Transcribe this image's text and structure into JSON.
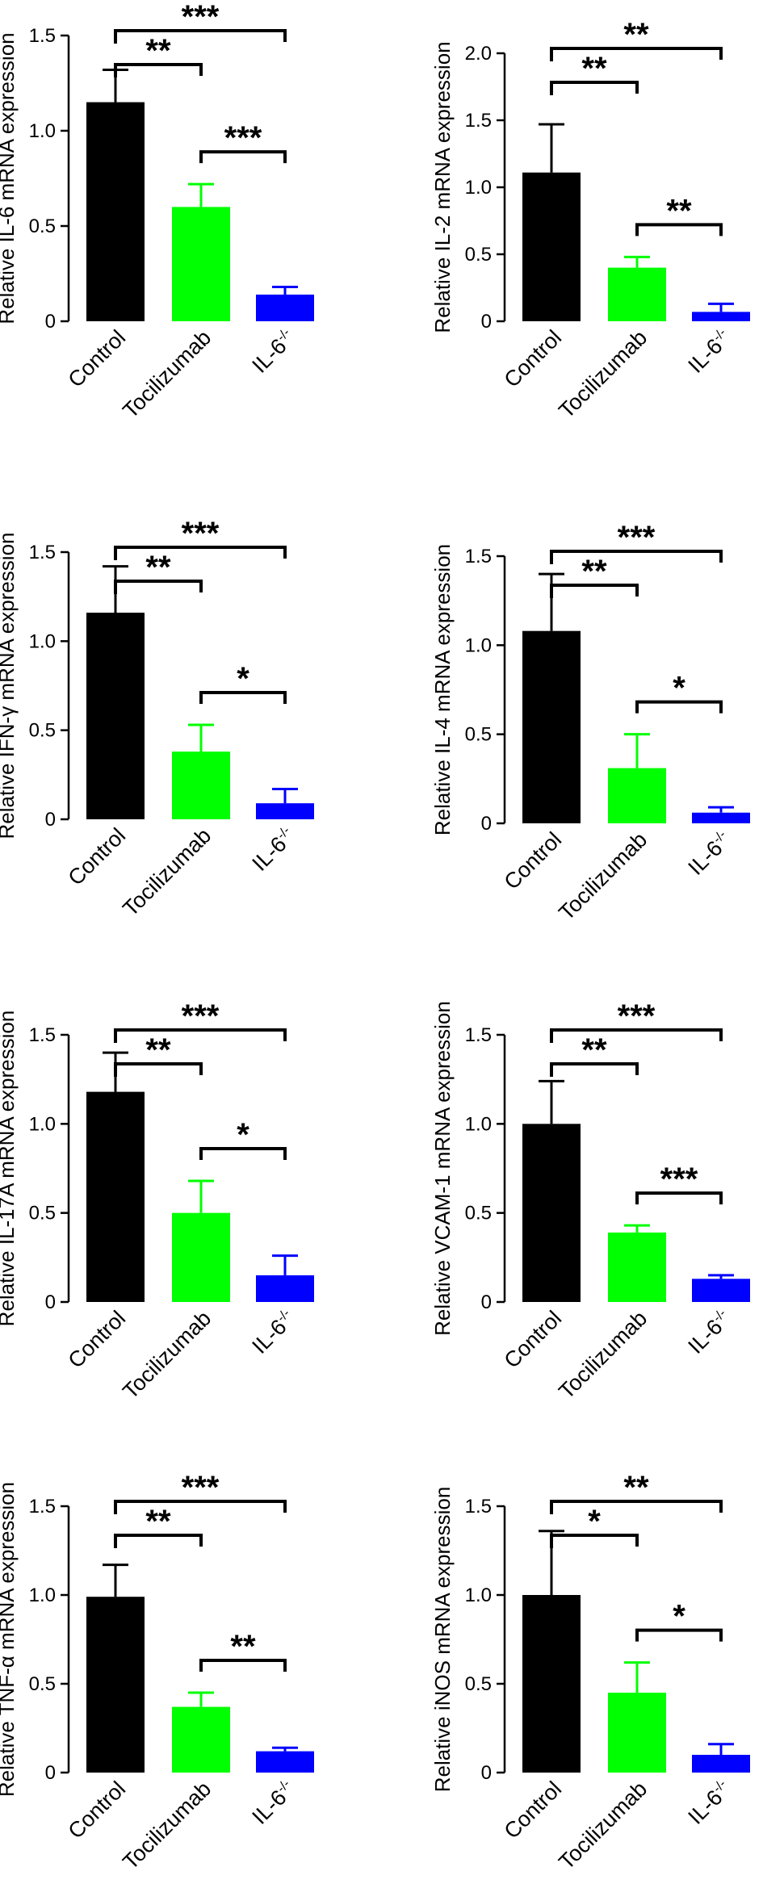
{
  "chart_data": [
    {
      "type": "bar",
      "title": "",
      "ylabel": "Relative IL-6 mRNA expression",
      "xlabel": "",
      "categories": [
        "Control",
        "Tocilizumab",
        "IL-6"
      ],
      "category_superscripts": [
        "",
        "",
        "-/-"
      ],
      "values": [
        1.15,
        0.6,
        0.14
      ],
      "errors": [
        0.17,
        0.12,
        0.04
      ],
      "colors": [
        "#000000",
        "#00ff00",
        "#0000ff"
      ],
      "ylim": [
        0,
        1.5
      ],
      "yticks": [
        "0",
        "0.5",
        "1.0",
        "1.5"
      ],
      "significance": [
        {
          "from": 0,
          "to": 2,
          "label": "***"
        },
        {
          "from": 0,
          "to": 1,
          "label": "**"
        },
        {
          "from": 1,
          "to": 2,
          "label": "***"
        }
      ]
    },
    {
      "type": "bar",
      "title": "",
      "ylabel": "Relative IL-2 mRNA expression",
      "xlabel": "",
      "categories": [
        "Control",
        "Tocilizumab",
        "IL-6"
      ],
      "category_superscripts": [
        "",
        "",
        "-/-"
      ],
      "values": [
        1.11,
        0.4,
        0.07
      ],
      "errors": [
        0.36,
        0.08,
        0.06
      ],
      "colors": [
        "#000000",
        "#00ff00",
        "#0000ff"
      ],
      "ylim": [
        0,
        2.0
      ],
      "yticks": [
        "0",
        "0.5",
        "1.0",
        "1.5",
        "2.0"
      ],
      "significance": [
        {
          "from": 0,
          "to": 2,
          "label": "**"
        },
        {
          "from": 0,
          "to": 1,
          "label": "**"
        },
        {
          "from": 1,
          "to": 2,
          "label": "**"
        }
      ]
    },
    {
      "type": "bar",
      "title": "",
      "ylabel": "Relative IFN-γ mRNA expression",
      "xlabel": "",
      "categories": [
        "Control",
        "Tocilizumab",
        "IL-6"
      ],
      "category_superscripts": [
        "",
        "",
        "-/-"
      ],
      "values": [
        1.16,
        0.38,
        0.09
      ],
      "errors": [
        0.26,
        0.15,
        0.08
      ],
      "colors": [
        "#000000",
        "#00ff00",
        "#0000ff"
      ],
      "ylim": [
        0,
        1.5
      ],
      "yticks": [
        "0",
        "0.5",
        "1.0",
        "1.5"
      ],
      "significance": [
        {
          "from": 0,
          "to": 2,
          "label": "***"
        },
        {
          "from": 0,
          "to": 1,
          "label": "**"
        },
        {
          "from": 1,
          "to": 2,
          "label": "*"
        }
      ]
    },
    {
      "type": "bar",
      "title": "",
      "ylabel": "Relative IL-4 mRNA expression",
      "xlabel": "",
      "categories": [
        "Control",
        "Tocilizumab",
        "IL-6"
      ],
      "category_superscripts": [
        "",
        "",
        "-/-"
      ],
      "values": [
        1.08,
        0.31,
        0.06
      ],
      "errors": [
        0.32,
        0.19,
        0.03
      ],
      "colors": [
        "#000000",
        "#00ff00",
        "#0000ff"
      ],
      "ylim": [
        0,
        1.5
      ],
      "yticks": [
        "0",
        "0.5",
        "1.0",
        "1.5"
      ],
      "significance": [
        {
          "from": 0,
          "to": 2,
          "label": "***"
        },
        {
          "from": 0,
          "to": 1,
          "label": "**"
        },
        {
          "from": 1,
          "to": 2,
          "label": "*"
        }
      ]
    },
    {
      "type": "bar",
      "title": "",
      "ylabel": "Relative IL-17A mRNA expression",
      "xlabel": "",
      "categories": [
        "Control",
        "Tocilizumab",
        "IL-6"
      ],
      "category_superscripts": [
        "",
        "",
        "-/-"
      ],
      "values": [
        1.18,
        0.5,
        0.15
      ],
      "errors": [
        0.22,
        0.18,
        0.11
      ],
      "colors": [
        "#000000",
        "#00ff00",
        "#0000ff"
      ],
      "ylim": [
        0,
        1.5
      ],
      "yticks": [
        "0",
        "0.5",
        "1.0",
        "1.5"
      ],
      "significance": [
        {
          "from": 0,
          "to": 2,
          "label": "***"
        },
        {
          "from": 0,
          "to": 1,
          "label": "**"
        },
        {
          "from": 1,
          "to": 2,
          "label": "*"
        }
      ]
    },
    {
      "type": "bar",
      "title": "",
      "ylabel": "Relative VCAM-1 mRNA expression",
      "xlabel": "",
      "categories": [
        "Control",
        "Tocilizumab",
        "IL-6"
      ],
      "category_superscripts": [
        "",
        "",
        "-/-"
      ],
      "values": [
        1.0,
        0.39,
        0.13
      ],
      "errors": [
        0.24,
        0.04,
        0.02
      ],
      "colors": [
        "#000000",
        "#00ff00",
        "#0000ff"
      ],
      "ylim": [
        0,
        1.5
      ],
      "yticks": [
        "0",
        "0.5",
        "1.0",
        "1.5"
      ],
      "significance": [
        {
          "from": 0,
          "to": 2,
          "label": "***"
        },
        {
          "from": 0,
          "to": 1,
          "label": "**"
        },
        {
          "from": 1,
          "to": 2,
          "label": "***"
        }
      ]
    },
    {
      "type": "bar",
      "title": "",
      "ylabel": "Relative TNF-α mRNA expression",
      "xlabel": "",
      "categories": [
        "Control",
        "Tocilizumab",
        "IL-6"
      ],
      "category_superscripts": [
        "",
        "",
        "-/-"
      ],
      "values": [
        0.99,
        0.37,
        0.12
      ],
      "errors": [
        0.18,
        0.08,
        0.02
      ],
      "colors": [
        "#000000",
        "#00ff00",
        "#0000ff"
      ],
      "ylim": [
        0,
        1.5
      ],
      "yticks": [
        "0",
        "0.5",
        "1.0",
        "1.5"
      ],
      "significance": [
        {
          "from": 0,
          "to": 2,
          "label": "***"
        },
        {
          "from": 0,
          "to": 1,
          "label": "**"
        },
        {
          "from": 1,
          "to": 2,
          "label": "**"
        }
      ]
    },
    {
      "type": "bar",
      "title": "",
      "ylabel": "Relative iNOS mRNA expression",
      "xlabel": "",
      "categories": [
        "Control",
        "Tocilizumab",
        "IL-6"
      ],
      "category_superscripts": [
        "",
        "",
        "-/-"
      ],
      "values": [
        1.0,
        0.45,
        0.1
      ],
      "errors": [
        0.36,
        0.17,
        0.06
      ],
      "colors": [
        "#000000",
        "#00ff00",
        "#0000ff"
      ],
      "ylim": [
        0,
        1.5
      ],
      "yticks": [
        "0",
        "0.5",
        "1.0",
        "1.5"
      ],
      "significance": [
        {
          "from": 0,
          "to": 2,
          "label": "**"
        },
        {
          "from": 0,
          "to": 1,
          "label": "*"
        },
        {
          "from": 1,
          "to": 2,
          "label": "*"
        }
      ]
    }
  ]
}
